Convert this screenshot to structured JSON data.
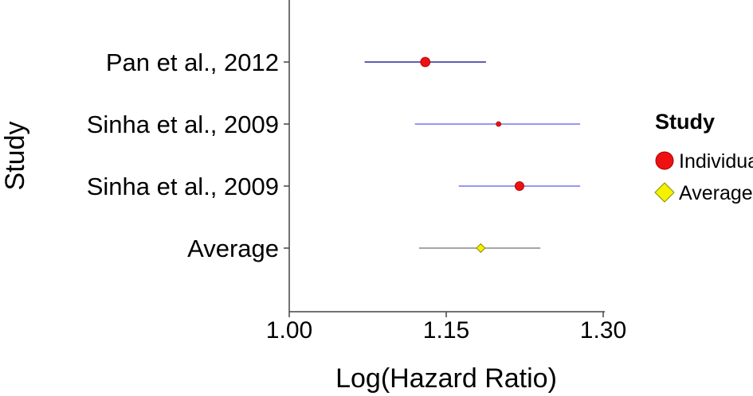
{
  "chart_data": {
    "type": "scatter",
    "subtype": "forest-plot",
    "xlabel": "Log(Hazard Ratio)",
    "ylabel": "Study",
    "xlim": [
      1.0,
      1.3
    ],
    "x_ticks": [
      "1.00",
      "1.15",
      "1.30"
    ],
    "x_tick_values": [
      1.0,
      1.15,
      1.3
    ],
    "grid": false,
    "legend": {
      "title": "Study",
      "placement": "right",
      "entries": [
        {
          "label": "Individual",
          "marker": "circle",
          "color": "#ee1111"
        },
        {
          "label": "Average",
          "marker": "diamond",
          "color": "#f5f200"
        }
      ]
    },
    "rows": [
      {
        "label": "Pan et al., 2012",
        "estimate": 1.13,
        "lower": 1.072,
        "upper": 1.188,
        "type": "Individual",
        "weight": 1.0,
        "line_color": "#2a2a9a"
      },
      {
        "label": "Sinha et al., 2009",
        "estimate": 1.2,
        "lower": 1.12,
        "upper": 1.278,
        "type": "Individual",
        "weight": 0.25,
        "line_color": "#7777ee"
      },
      {
        "label": "Sinha et al., 2009",
        "estimate": 1.22,
        "lower": 1.162,
        "upper": 1.278,
        "type": "Individual",
        "weight": 0.9,
        "line_color": "#7777ee"
      },
      {
        "label": "Average",
        "estimate": 1.183,
        "lower": 1.124,
        "upper": 1.24,
        "type": "Average",
        "weight": 0.8,
        "line_color": "#888888"
      }
    ]
  }
}
